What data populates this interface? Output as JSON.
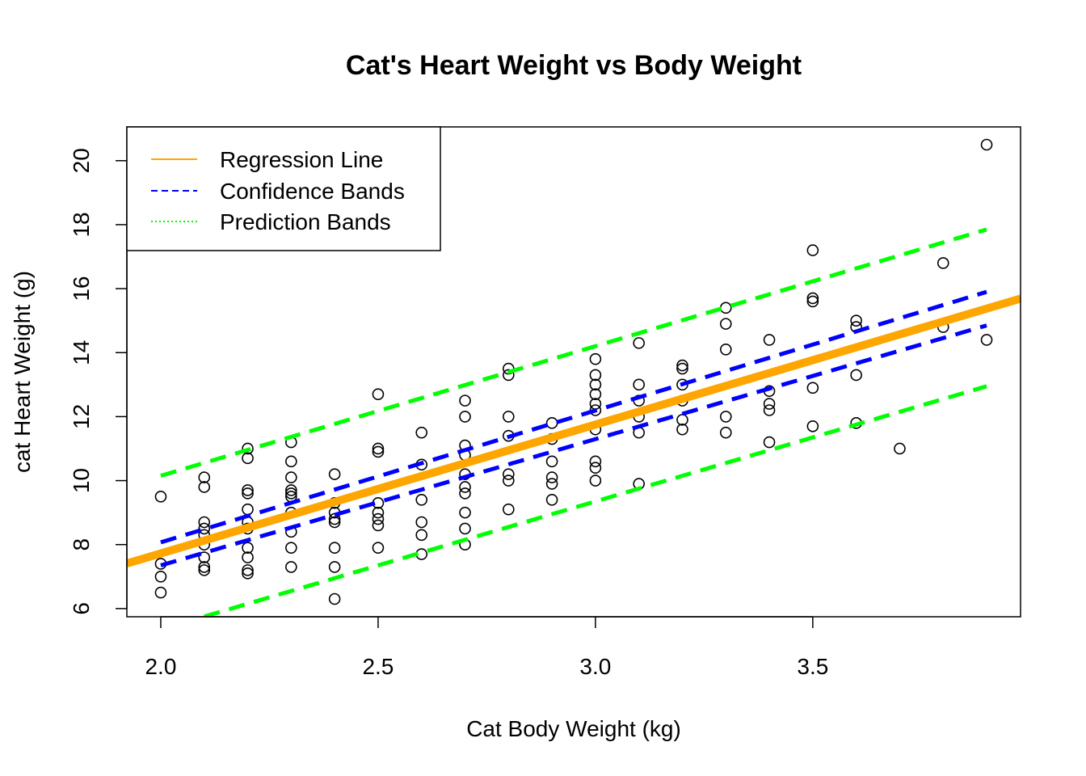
{
  "chart_data": {
    "type": "scatter",
    "title": "Cat's Heart Weight vs Body Weight",
    "xlabel": "Cat Body Weight (kg)",
    "ylabel": "cat Heart Weight (g)",
    "xlim": [
      1.922,
      3.978
    ],
    "ylim": [
      5.744,
      21.056
    ],
    "x_ticks": [
      2.0,
      2.5,
      3.0,
      3.5
    ],
    "x_tick_labels": [
      "2.0",
      "2.5",
      "3.0",
      "3.5"
    ],
    "y_ticks": [
      6,
      8,
      10,
      12,
      14,
      16,
      18,
      20
    ],
    "y_tick_labels": [
      "6",
      "8",
      "10",
      "12",
      "14",
      "16",
      "18",
      "20"
    ],
    "legend_position": "top-left",
    "colors": {
      "points": "#000000",
      "regression": "#FFA500",
      "confidence": "#0000FF",
      "prediction": "#00FF00"
    },
    "legend": [
      {
        "label": "Regression Line",
        "color": "#FFA500",
        "style": "solid"
      },
      {
        "label": "Confidence Bands",
        "color": "#0000FF",
        "style": "dashed"
      },
      {
        "label": "Prediction Bands",
        "color": "#00FF00",
        "style": "dotted"
      }
    ],
    "points": [
      [
        2.0,
        9.5
      ],
      [
        2.0,
        7.4
      ],
      [
        2.0,
        7.0
      ],
      [
        2.0,
        6.5
      ],
      [
        2.1,
        10.1
      ],
      [
        2.1,
        9.8
      ],
      [
        2.1,
        8.7
      ],
      [
        2.1,
        8.5
      ],
      [
        2.1,
        8.3
      ],
      [
        2.1,
        8.0
      ],
      [
        2.1,
        7.6
      ],
      [
        2.1,
        7.3
      ],
      [
        2.1,
        7.2
      ],
      [
        2.2,
        11.0
      ],
      [
        2.2,
        10.7
      ],
      [
        2.2,
        9.7
      ],
      [
        2.2,
        9.6
      ],
      [
        2.2,
        9.1
      ],
      [
        2.2,
        8.7
      ],
      [
        2.2,
        8.5
      ],
      [
        2.2,
        7.9
      ],
      [
        2.2,
        7.6
      ],
      [
        2.2,
        7.2
      ],
      [
        2.2,
        7.1
      ],
      [
        2.3,
        11.2
      ],
      [
        2.3,
        10.6
      ],
      [
        2.3,
        10.1
      ],
      [
        2.3,
        9.7
      ],
      [
        2.3,
        9.6
      ],
      [
        2.3,
        9.5
      ],
      [
        2.3,
        9.0
      ],
      [
        2.3,
        8.4
      ],
      [
        2.3,
        7.9
      ],
      [
        2.3,
        7.3
      ],
      [
        2.4,
        10.2
      ],
      [
        2.4,
        9.3
      ],
      [
        2.4,
        9.0
      ],
      [
        2.4,
        8.8
      ],
      [
        2.4,
        8.7
      ],
      [
        2.4,
        7.9
      ],
      [
        2.4,
        7.3
      ],
      [
        2.4,
        6.3
      ],
      [
        2.5,
        12.7
      ],
      [
        2.5,
        11.0
      ],
      [
        2.5,
        10.9
      ],
      [
        2.5,
        9.3
      ],
      [
        2.5,
        9.0
      ],
      [
        2.5,
        8.8
      ],
      [
        2.5,
        8.6
      ],
      [
        2.5,
        7.9
      ],
      [
        2.6,
        11.5
      ],
      [
        2.6,
        10.5
      ],
      [
        2.6,
        9.4
      ],
      [
        2.6,
        8.7
      ],
      [
        2.6,
        8.3
      ],
      [
        2.6,
        7.7
      ],
      [
        2.7,
        12.5
      ],
      [
        2.7,
        12.0
      ],
      [
        2.7,
        11.1
      ],
      [
        2.7,
        10.8
      ],
      [
        2.7,
        10.2
      ],
      [
        2.7,
        9.8
      ],
      [
        2.7,
        9.6
      ],
      [
        2.7,
        9.0
      ],
      [
        2.7,
        8.5
      ],
      [
        2.7,
        8.0
      ],
      [
        2.8,
        13.5
      ],
      [
        2.8,
        13.3
      ],
      [
        2.8,
        12.0
      ],
      [
        2.8,
        11.4
      ],
      [
        2.8,
        10.2
      ],
      [
        2.8,
        10.0
      ],
      [
        2.8,
        9.1
      ],
      [
        2.9,
        11.8
      ],
      [
        2.9,
        11.3
      ],
      [
        2.9,
        10.6
      ],
      [
        2.9,
        10.1
      ],
      [
        2.9,
        9.9
      ],
      [
        2.9,
        9.4
      ],
      [
        3.0,
        13.8
      ],
      [
        3.0,
        13.3
      ],
      [
        3.0,
        13.0
      ],
      [
        3.0,
        12.7
      ],
      [
        3.0,
        12.4
      ],
      [
        3.0,
        12.2
      ],
      [
        3.0,
        11.6
      ],
      [
        3.0,
        10.6
      ],
      [
        3.0,
        10.4
      ],
      [
        3.0,
        10.0
      ],
      [
        3.1,
        14.3
      ],
      [
        3.1,
        13.0
      ],
      [
        3.1,
        12.5
      ],
      [
        3.1,
        12.0
      ],
      [
        3.1,
        11.5
      ],
      [
        3.1,
        9.9
      ],
      [
        3.2,
        13.6
      ],
      [
        3.2,
        13.5
      ],
      [
        3.2,
        13.0
      ],
      [
        3.2,
        12.5
      ],
      [
        3.2,
        11.9
      ],
      [
        3.2,
        11.6
      ],
      [
        3.3,
        15.4
      ],
      [
        3.3,
        14.9
      ],
      [
        3.3,
        14.1
      ],
      [
        3.3,
        12.0
      ],
      [
        3.3,
        11.5
      ],
      [
        3.4,
        14.4
      ],
      [
        3.4,
        12.8
      ],
      [
        3.4,
        12.4
      ],
      [
        3.4,
        12.2
      ],
      [
        3.4,
        11.2
      ],
      [
        3.5,
        17.2
      ],
      [
        3.5,
        15.7
      ],
      [
        3.5,
        15.6
      ],
      [
        3.5,
        12.9
      ],
      [
        3.5,
        11.7
      ],
      [
        3.6,
        15.0
      ],
      [
        3.6,
        14.8
      ],
      [
        3.6,
        13.3
      ],
      [
        3.6,
        11.8
      ],
      [
        3.7,
        11.0
      ],
      [
        3.8,
        16.8
      ],
      [
        3.8,
        14.8
      ],
      [
        3.9,
        20.5
      ],
      [
        3.9,
        14.4
      ]
    ],
    "regression": {
      "x": [
        1.922,
        3.978
      ],
      "y": [
        7.41,
        15.69
      ]
    },
    "confidence_upper": {
      "x": [
        2.0,
        3.9
      ],
      "y": [
        8.07,
        15.9
      ]
    },
    "confidence_lower": {
      "x": [
        2.0,
        3.9
      ],
      "y": [
        7.35,
        14.85
      ]
    },
    "prediction_upper": {
      "x": [
        2.0,
        3.9
      ],
      "y": [
        10.15,
        17.85
      ]
    },
    "prediction_lower": {
      "x": [
        2.1,
        3.9
      ],
      "y": [
        5.75,
        12.95
      ]
    }
  }
}
